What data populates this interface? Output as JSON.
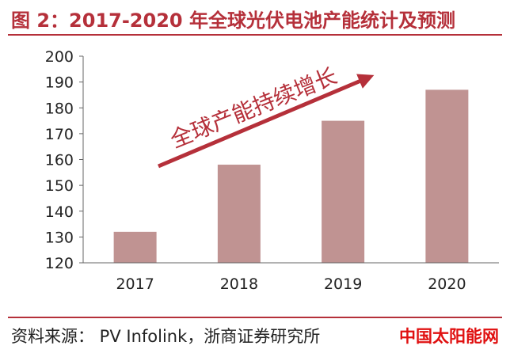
{
  "header": {
    "title": "图 2：2017-2020 年全球光伏电池产能统计及预测"
  },
  "footer": {
    "source": "资料来源： PV Infolink，浙商证券研究所",
    "watermark": "中国太阳能网"
  },
  "colors": {
    "bar": "#c09392",
    "arrow": "#b5303a",
    "title": "#b5303a",
    "watermark": "#e01010"
  },
  "chart_data": {
    "type": "bar",
    "title": "",
    "xlabel": "",
    "ylabel": "",
    "categories": [
      "2017",
      "2018",
      "2019",
      "2020"
    ],
    "values": [
      132,
      158,
      175,
      187
    ],
    "ylim": [
      120,
      200
    ],
    "yticks": [
      120,
      130,
      140,
      150,
      160,
      170,
      180,
      190,
      200
    ],
    "grid": false,
    "legend": "none",
    "annotations": [
      {
        "text": "全球产能持续增长"
      }
    ]
  }
}
